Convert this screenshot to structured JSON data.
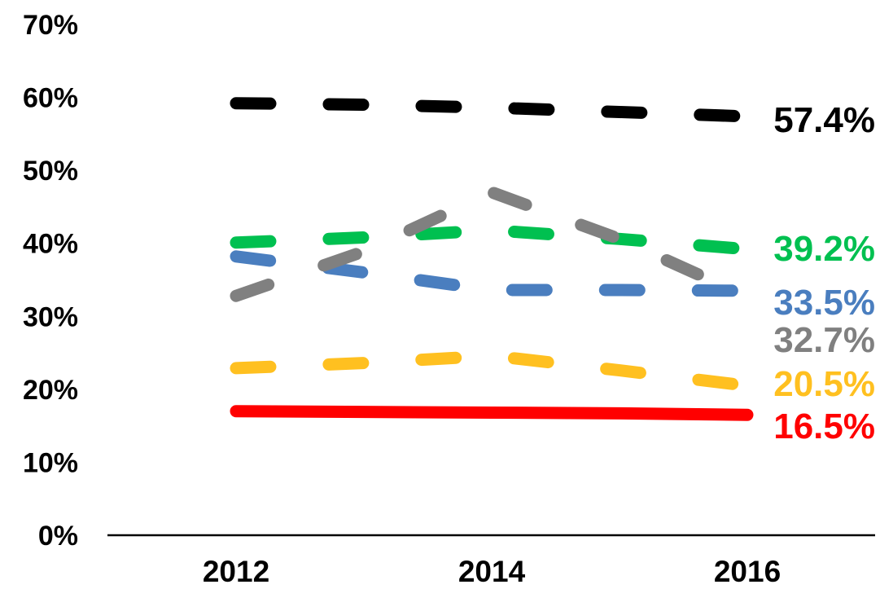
{
  "chart_data": {
    "type": "line",
    "title": "",
    "xlabel": "",
    "ylabel": "",
    "x": [
      2012,
      2013,
      2014,
      2015,
      2016
    ],
    "xlim": [
      2012,
      2016
    ],
    "ylim": [
      0,
      70
    ],
    "x_tick_labels": [
      "2012",
      "2014",
      "2016"
    ],
    "x_tick_values": [
      2012,
      2014,
      2016
    ],
    "y_tick_labels": [
      "0%",
      "10%",
      "20%",
      "30%",
      "40%",
      "50%",
      "60%",
      "70%"
    ],
    "y_tick_values": [
      0,
      10,
      20,
      30,
      40,
      50,
      60,
      70
    ],
    "grid": false,
    "legend": "none",
    "series": [
      {
        "key": "black",
        "color": "#000000",
        "dashed": true,
        "values": [
          59.2,
          59.0,
          58.6,
          58.0,
          57.4
        ],
        "end_label": "57.4%"
      },
      {
        "key": "green",
        "color": "#00c050",
        "dashed": true,
        "values": [
          40.1,
          40.8,
          41.8,
          40.6,
          39.2
        ],
        "end_label": "39.2%"
      },
      {
        "key": "blue",
        "color": "#4a7ebf",
        "dashed": true,
        "values": [
          38.2,
          36.0,
          33.6,
          33.6,
          33.5
        ],
        "end_label": "33.5%"
      },
      {
        "key": "gray",
        "color": "#808080",
        "dashed": true,
        "values": [
          32.8,
          38.9,
          47.0,
          40.6,
          32.7
        ],
        "end_label": "32.7%"
      },
      {
        "key": "orange",
        "color": "#ffc020",
        "dashed": true,
        "values": [
          22.9,
          23.6,
          24.6,
          22.6,
          20.5
        ],
        "end_label": "20.5%"
      },
      {
        "key": "red",
        "color": "#ff0000",
        "dashed": false,
        "values": [
          17.0,
          16.9,
          16.8,
          16.7,
          16.5
        ],
        "end_label": "16.5%"
      }
    ]
  }
}
